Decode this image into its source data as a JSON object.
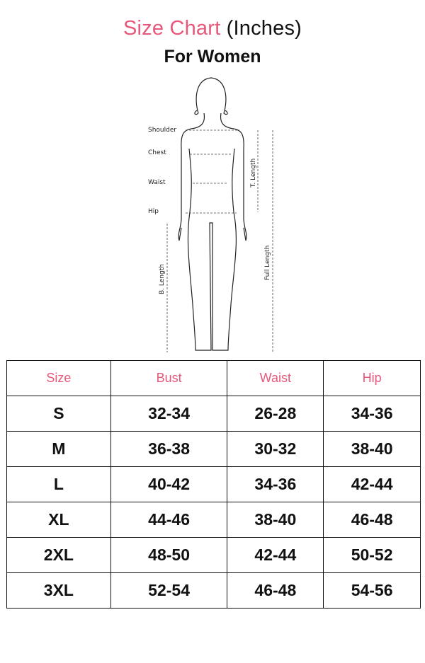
{
  "title": {
    "highlight": "Size Chart",
    "rest": "(Inches)"
  },
  "subtitle": "For Women",
  "figure": {
    "labels": {
      "shoulder": "Shoulder",
      "chest": "Chest",
      "waist": "Waist",
      "hip": "Hip",
      "t_length": "T. Length",
      "b_length": "B. Length",
      "full_length": "Full Length"
    }
  },
  "table": {
    "headers": [
      "Size",
      "Bust",
      "Waist",
      "Hip"
    ],
    "rows": [
      [
        "S",
        "32-34",
        "26-28",
        "34-36"
      ],
      [
        "M",
        "36-38",
        "30-32",
        "38-40"
      ],
      [
        "L",
        "40-42",
        "34-36",
        "42-44"
      ],
      [
        "XL",
        "44-46",
        "38-40",
        "46-48"
      ],
      [
        "2XL",
        "48-50",
        "42-44",
        "50-52"
      ],
      [
        "3XL",
        "52-54",
        "46-48",
        "54-56"
      ]
    ]
  },
  "colors": {
    "accent": "#e8587a",
    "text": "#111111"
  }
}
